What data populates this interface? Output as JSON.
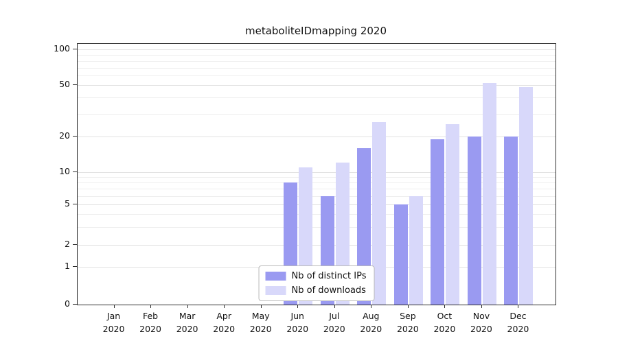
{
  "chart_data": {
    "type": "bar",
    "title": "metaboliteIDmapping 2020",
    "categories": [
      "Jan\n2020",
      "Feb\n2020",
      "Mar\n2020",
      "Apr\n2020",
      "May\n2020",
      "Jun\n2020",
      "Jul\n2020",
      "Aug\n2020",
      "Sep\n2020",
      "Oct\n2020",
      "Nov\n2020",
      "Dec\n2020"
    ],
    "series": [
      {
        "name": "Nb of distinct IPs",
        "color": "#9a9af1",
        "values": [
          0,
          0,
          0,
          0,
          0,
          8,
          6,
          16,
          5,
          19,
          20,
          20
        ]
      },
      {
        "name": "Nb of downloads",
        "color": "#d8d8fa",
        "values": [
          0,
          0,
          0,
          0,
          0,
          11,
          12,
          26,
          6,
          25,
          52,
          48
        ]
      }
    ],
    "yticks": [
      0,
      1,
      2,
      5,
      10,
      20,
      50,
      100
    ],
    "ylabel": "",
    "xlabel": "",
    "yscale": "log-like",
    "grid": "horizontal",
    "legend_position": "bottom-center-inside"
  }
}
